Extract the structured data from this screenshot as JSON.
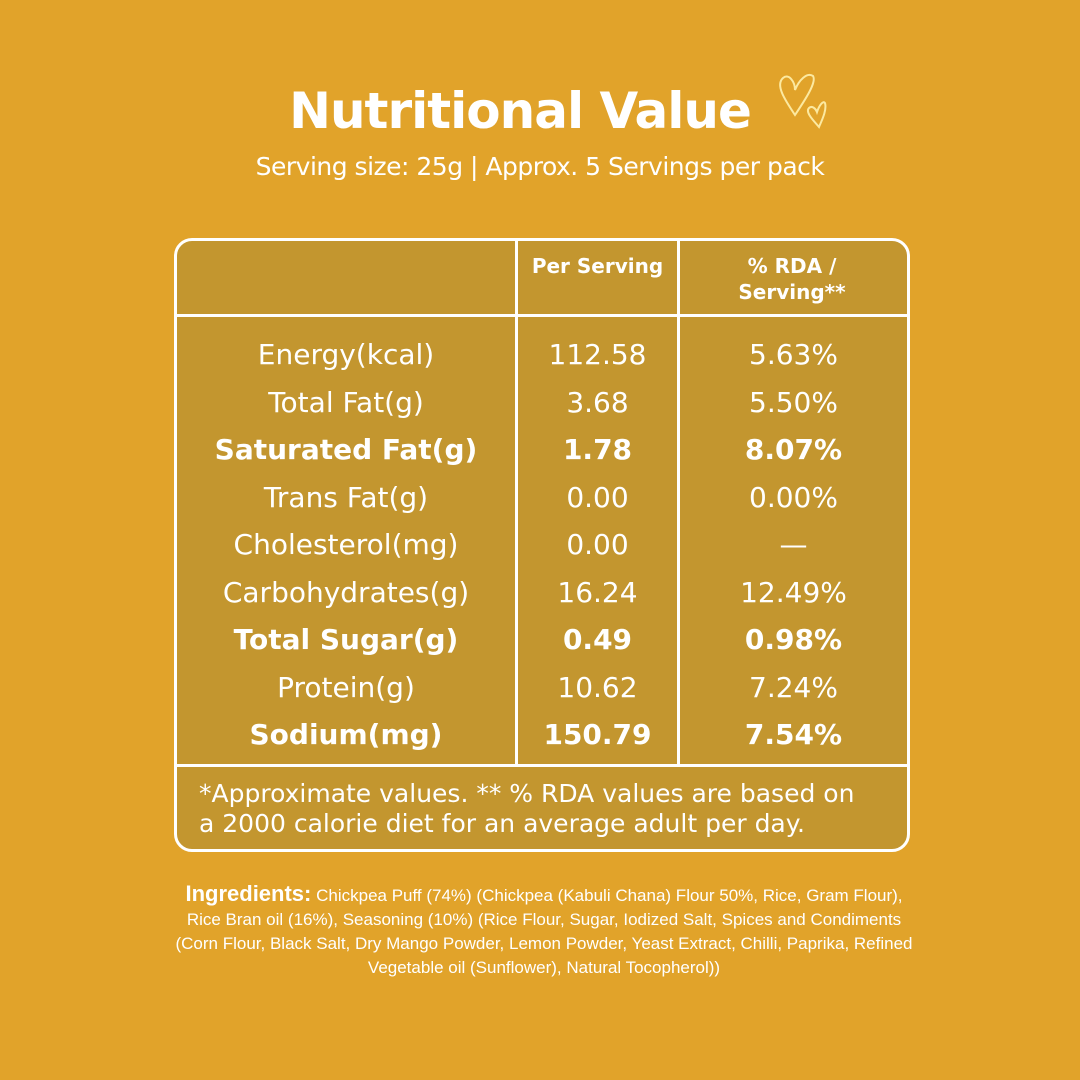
{
  "title": "Nutritional Value",
  "subtitle": "Serving size: 25g | Approx. 5 Servings per pack",
  "table": {
    "headers": [
      "",
      "Per Serving",
      "% RDA / Serving**"
    ],
    "rows": [
      {
        "name": "Energy(kcal)",
        "per": "112.58",
        "rda": "5.63%",
        "bold": false
      },
      {
        "name": "Total Fat(g)",
        "per": "3.68",
        "rda": "5.50%",
        "bold": false
      },
      {
        "name": "Saturated Fat(g)",
        "per": "1.78",
        "rda": "8.07%",
        "bold": true
      },
      {
        "name": "Trans Fat(g)",
        "per": "0.00",
        "rda": "0.00%",
        "bold": false
      },
      {
        "name": "Cholesterol(mg)",
        "per": "0.00",
        "rda": "—",
        "bold": false
      },
      {
        "name": "Carbohydrates(g)",
        "per": "16.24",
        "rda": "12.49%",
        "bold": false
      },
      {
        "name": "Total Sugar(g)",
        "per": "0.49",
        "rda": "0.98%",
        "bold": true
      },
      {
        "name": "Protein(g)",
        "per": "10.62",
        "rda": "7.24%",
        "bold": false
      },
      {
        "name": "Sodium(mg)",
        "per": "150.79",
        "rda": "7.54%",
        "bold": true
      }
    ],
    "footnote_line1": "*Approximate values. ** % RDA values are based on",
    "footnote_line2": "a 2000 calorie diet for an average adult per day."
  },
  "ingredients": {
    "label": "Ingredients:",
    "text": "Chickpea Puff (74%) (Chickpea (Kabuli Chana) Flour 50%, Rice, Gram Flour), Rice Bran oil (16%), Seasoning (10%) (Rice Flour, Sugar, Iodized Salt, Spices and Condiments (Corn Flour, Black Salt, Dry Mango Powder, Lemon Powder, Yeast Extract, Chilli, Paprika, Refined Vegetable oil (Sunflower), Natural Tocopherol))"
  },
  "icons": {
    "decoration": "hearts-icon"
  },
  "colors": {
    "background": "#E1A32A",
    "table": "#C3962F",
    "text": "#FFFFFF",
    "hearts": "#FCE9A0"
  }
}
